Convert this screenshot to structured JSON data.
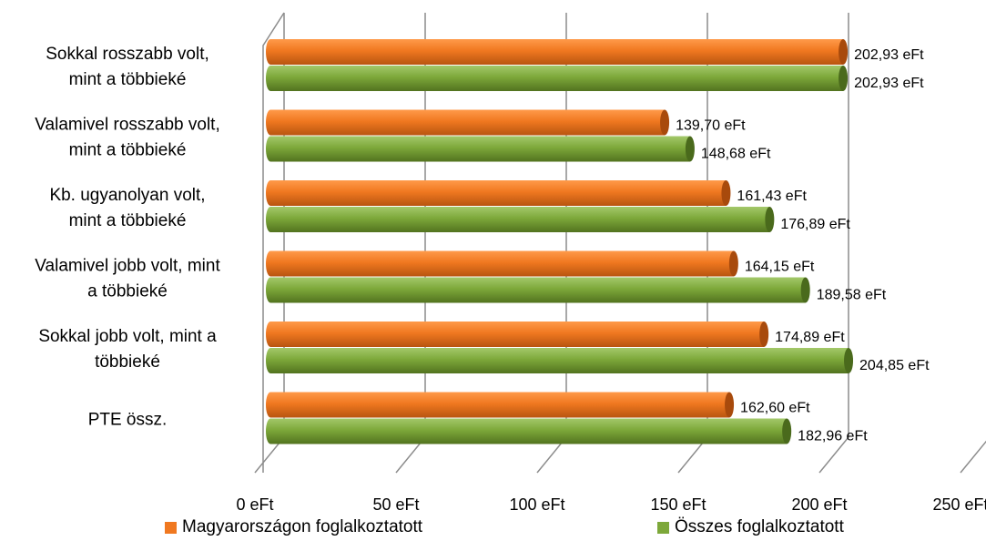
{
  "chart_data": {
    "type": "bar",
    "orientation": "horizontal",
    "three_d": true,
    "categories": [
      [
        "Sokkal rosszabb volt,",
        "mint a többieké"
      ],
      [
        "Valamivel rosszabb volt,",
        "mint a többieké"
      ],
      [
        "Kb. ugyanolyan volt,",
        "mint a többieké"
      ],
      [
        "Valamivel jobb volt, mint",
        "a többieké"
      ],
      [
        "Sokkal jobb volt, mint a",
        "többieké"
      ],
      [
        "PTE össz."
      ]
    ],
    "series": [
      {
        "name": "Magyarországon foglalkoztatott",
        "color": "#f07820",
        "values": [
          202.93,
          139.7,
          161.43,
          164.15,
          174.89,
          162.6
        ],
        "labels": [
          "202,93 eFt",
          "139,70 eFt",
          "161,43 eFt",
          "164,15 eFt",
          "174,89 eFt",
          "162,60 eFt"
        ]
      },
      {
        "name": "Összes foglalkoztatott",
        "color": "#7da83a",
        "values": [
          202.93,
          148.68,
          176.89,
          189.58,
          204.85,
          182.96
        ],
        "labels": [
          "202,93 eFt",
          "148,68 eFt",
          "176,89 eFt",
          "189,58 eFt",
          "204,85 eFt",
          "182,96 eFt"
        ]
      }
    ],
    "xlim": [
      0,
      250
    ],
    "xticks": [
      0,
      50,
      100,
      150,
      200,
      250
    ],
    "xtick_labels": [
      "0 eFt",
      "50 eFt",
      "100 eFt",
      "150 eFt",
      "200 eFt",
      "250 eFt"
    ],
    "title": "",
    "xlabel": "",
    "ylabel": "",
    "grid": true,
    "legend_position": "bottom"
  }
}
